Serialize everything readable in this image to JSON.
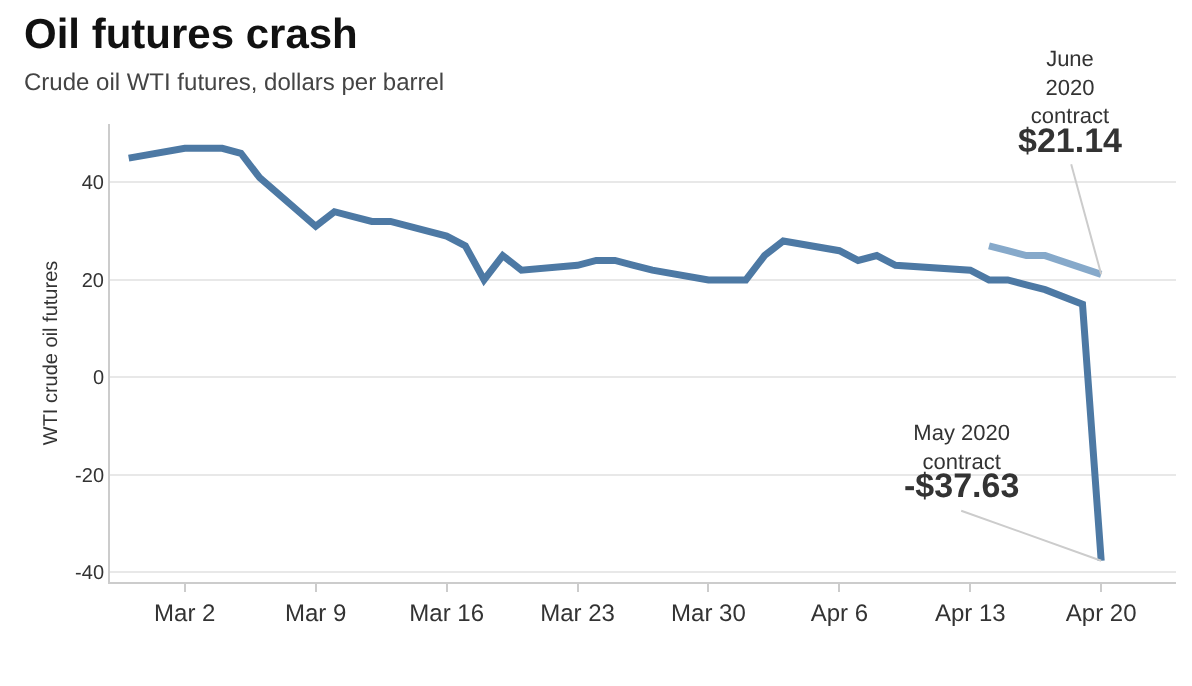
{
  "chart_data": {
    "type": "line",
    "title": "Oil futures crash",
    "subtitle": "Crude oil WTI futures, dollars per barrel",
    "ylabel": "WTI crude oil futures",
    "series": [
      {
        "color": "#4d79a4",
        "x": [
          "2020-02-28",
          "2020-03-02",
          "2020-03-03",
          "2020-03-04",
          "2020-03-05",
          "2020-03-06",
          "2020-03-09",
          "2020-03-10",
          "2020-03-11",
          "2020-03-12",
          "2020-03-13",
          "2020-03-16",
          "2020-03-17",
          "2020-03-18",
          "2020-03-19",
          "2020-03-20",
          "2020-03-23",
          "2020-03-24",
          "2020-03-25",
          "2020-03-26",
          "2020-03-27",
          "2020-03-30",
          "2020-03-31",
          "2020-04-01",
          "2020-04-02",
          "2020-04-03",
          "2020-04-06",
          "2020-04-07",
          "2020-04-08",
          "2020-04-09",
          "2020-04-13",
          "2020-04-14",
          "2020-04-15",
          "2020-04-16",
          "2020-04-17",
          "2020-04-19",
          "2020-04-20"
        ],
        "values": [
          45,
          47,
          47,
          47,
          46,
          41,
          31,
          34,
          33,
          32,
          32,
          29,
          27,
          20,
          25,
          22,
          23,
          24,
          24,
          23,
          22,
          20,
          20,
          20,
          25,
          28,
          26,
          24,
          25,
          23,
          22,
          20,
          20,
          19,
          18,
          15,
          -37.63
        ]
      },
      {
        "color": "#86a9ca",
        "x": [
          "2020-04-14",
          "2020-04-15",
          "2020-04-16",
          "2020-04-17",
          "2020-04-20"
        ],
        "values": [
          27,
          26,
          25,
          25,
          21.14
        ]
      }
    ],
    "xlim": [
      "2020-02-27",
      "2020-04-24"
    ],
    "xticks": [
      {
        "value": "2020-03-02",
        "label": "Mar 2"
      },
      {
        "value": "2020-03-09",
        "label": "Mar 9"
      },
      {
        "value": "2020-03-16",
        "label": "Mar 16"
      },
      {
        "value": "2020-03-23",
        "label": "Mar 23"
      },
      {
        "value": "2020-03-30",
        "label": "Mar 30"
      },
      {
        "value": "2020-04-06",
        "label": "Apr 6"
      },
      {
        "value": "2020-04-13",
        "label": "Apr 13"
      },
      {
        "value": "2020-04-20",
        "label": "Apr 20"
      }
    ],
    "ylim": [
      -42,
      52
    ],
    "yticks": [
      -40,
      -20,
      0,
      20,
      40
    ],
    "grid": "y",
    "marker": "none",
    "line_style": "solid",
    "annotations": [
      {
        "text": "June\n2020\ncontract\n$21.14",
        "x": "2020-04-20",
        "y": 21.14
      },
      {
        "text": "May 2020\ncontract\n-$37.63",
        "x": "2020-04-20",
        "y": -37.63
      }
    ]
  }
}
